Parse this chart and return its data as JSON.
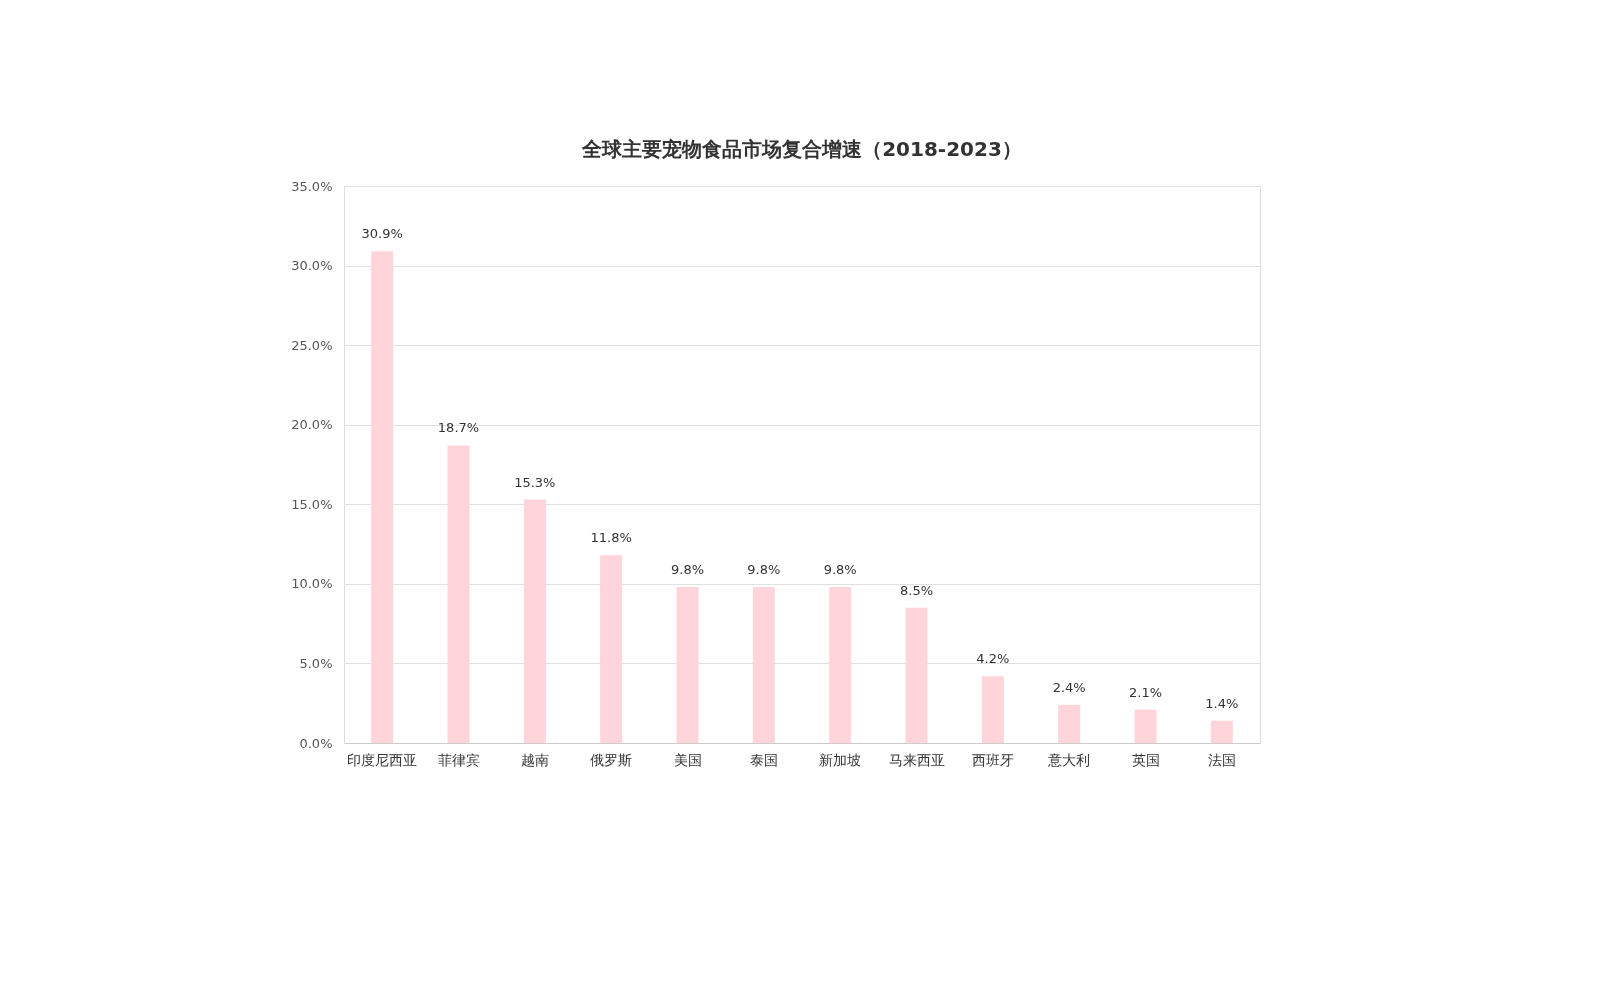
{
  "chart_data": {
    "type": "bar",
    "title": "全球主要宠物食品市场复合增速（2018-2023）",
    "categories": [
      "印度尼西亚",
      "菲律宾",
      "越南",
      "俄罗斯",
      "美国",
      "泰国",
      "新加坡",
      "马来西亚",
      "西班牙",
      "意大利",
      "英国",
      "法国"
    ],
    "values": [
      30.9,
      18.7,
      15.3,
      11.8,
      9.8,
      9.8,
      9.8,
      8.5,
      4.2,
      2.4,
      2.1,
      1.4
    ],
    "value_labels": [
      "30.9%",
      "18.7%",
      "15.3%",
      "11.8%",
      "9.8%",
      "9.8%",
      "9.8%",
      "8.5%",
      "4.2%",
      "2.4%",
      "2.1%",
      "1.4%"
    ],
    "color": "#ffd4da",
    "ylim": [
      0,
      35
    ],
    "yticks": [
      {
        "value": 0,
        "label": "0.0%"
      },
      {
        "value": 5,
        "label": "5.0%"
      },
      {
        "value": 10,
        "label": "10.0%"
      },
      {
        "value": 15,
        "label": "15.0%"
      },
      {
        "value": 20,
        "label": "20.0%"
      },
      {
        "value": 25,
        "label": "25.0%"
      },
      {
        "value": 30,
        "label": "30.0%"
      },
      {
        "value": 35,
        "label": "35.0%"
      }
    ],
    "grid": "y"
  }
}
